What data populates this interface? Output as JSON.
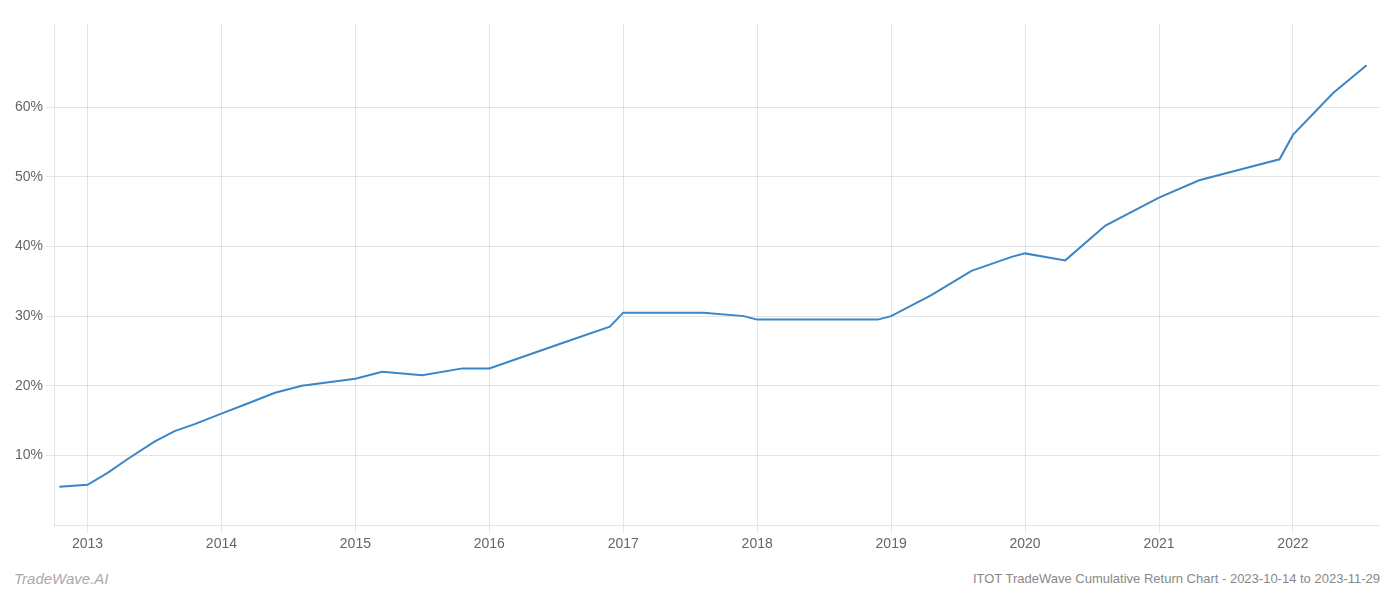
{
  "chart_data": {
    "type": "line",
    "title": "ITOT TradeWave Cumulative Return Chart - 2023-10-14 to 2023-11-29",
    "annotations": [
      "TradeWave.AI"
    ],
    "color": "#3a86c8",
    "x": [
      2012.79,
      2013.0,
      2013.15,
      2013.3,
      2013.5,
      2013.65,
      2013.8,
      2014.0,
      2014.2,
      2014.4,
      2014.6,
      2014.8,
      2015.0,
      2015.2,
      2015.5,
      2015.8,
      2016.0,
      2016.3,
      2016.6,
      2016.9,
      2017.0,
      2017.3,
      2017.6,
      2017.9,
      2018.0,
      2018.3,
      2018.6,
      2018.9,
      2019.0,
      2019.3,
      2019.6,
      2019.9,
      2020.0,
      2020.3,
      2020.6,
      2020.9,
      2021.0,
      2021.3,
      2021.6,
      2021.9,
      2022.0,
      2022.3,
      2022.55
    ],
    "values": [
      5.5,
      5.8,
      7.5,
      9.5,
      12.0,
      13.5,
      14.5,
      16.0,
      17.5,
      19.0,
      20.0,
      20.5,
      21.0,
      22.0,
      21.5,
      22.5,
      22.5,
      24.5,
      26.5,
      28.5,
      30.5,
      30.5,
      30.5,
      30.0,
      29.5,
      29.5,
      29.5,
      29.5,
      30.0,
      33.0,
      36.5,
      38.5,
      39.0,
      38.0,
      43.0,
      46.0,
      47.0,
      49.5,
      51.0,
      52.5,
      56.0,
      62.0,
      66.0
    ],
    "xlim": [
      2012.75,
      2022.65
    ],
    "xticks": [
      2013,
      2014,
      2015,
      2016,
      2017,
      2018,
      2019,
      2020,
      2021,
      2022
    ],
    "ylim": [
      0,
      72
    ],
    "yticks": [
      {
        "value": 10,
        "label": "10%"
      },
      {
        "value": 20,
        "label": "20%"
      },
      {
        "value": 30,
        "label": "30%"
      },
      {
        "value": 40,
        "label": "40%"
      },
      {
        "value": 50,
        "label": "50%"
      },
      {
        "value": 60,
        "label": "60%"
      }
    ],
    "grid": true
  }
}
